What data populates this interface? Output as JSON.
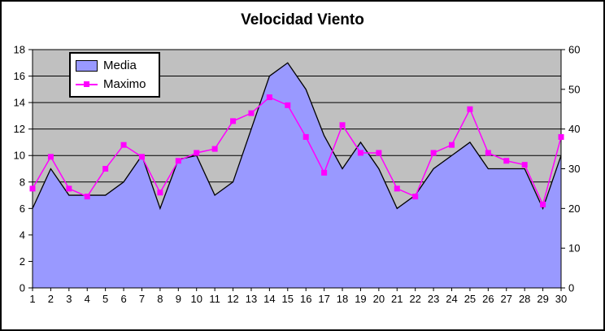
{
  "title": "Velocidad Viento",
  "legend": {
    "items": [
      {
        "label": "Media",
        "type": "area",
        "color": "#9999FF"
      },
      {
        "label": "Maximo",
        "type": "line",
        "color": "#FF00FF"
      }
    ]
  },
  "chart_data": {
    "type": "area",
    "title": "Velocidad Viento",
    "categories": [
      1,
      2,
      3,
      4,
      5,
      6,
      7,
      8,
      9,
      10,
      11,
      12,
      13,
      14,
      15,
      16,
      17,
      18,
      19,
      20,
      21,
      22,
      23,
      24,
      25,
      26,
      27,
      28,
      29,
      30
    ],
    "series": [
      {
        "name": "Media",
        "type": "area",
        "axis": "left",
        "color": "#9999FF",
        "border_color": "#000000",
        "values": [
          6,
          9,
          7,
          7,
          7,
          8,
          10,
          6,
          9.7,
          10,
          7,
          8,
          12,
          16,
          17,
          15,
          11.5,
          9,
          11,
          9,
          6,
          7,
          9,
          10,
          11,
          9,
          9,
          9,
          6,
          10
        ]
      },
      {
        "name": "Maximo",
        "type": "line",
        "axis": "right",
        "color": "#FF00FF",
        "marker": "square",
        "values": [
          25,
          33,
          25,
          23,
          30,
          36,
          33,
          24,
          32,
          34,
          35,
          42,
          44,
          48,
          46,
          38,
          29,
          41,
          34,
          34,
          25,
          23,
          34,
          36,
          45,
          34,
          32,
          31,
          21,
          38
        ]
      }
    ],
    "axes": {
      "left": {
        "min": 0,
        "max": 18,
        "step": 2,
        "ticks": [
          0,
          2,
          4,
          6,
          8,
          10,
          12,
          14,
          16,
          18
        ]
      },
      "right": {
        "min": 0,
        "max": 60,
        "step": 10,
        "ticks": [
          0,
          10,
          20,
          30,
          40,
          50,
          60
        ]
      },
      "x": {
        "ticks": [
          1,
          2,
          3,
          4,
          5,
          6,
          7,
          8,
          9,
          10,
          11,
          12,
          13,
          14,
          15,
          16,
          17,
          18,
          19,
          20,
          21,
          22,
          23,
          24,
          25,
          26,
          27,
          28,
          29,
          30
        ]
      }
    },
    "grid": true,
    "plot_bg": "#C0C0C0",
    "grid_color": "#000000",
    "axis_color": "#000000",
    "legend_position": "top-left"
  }
}
